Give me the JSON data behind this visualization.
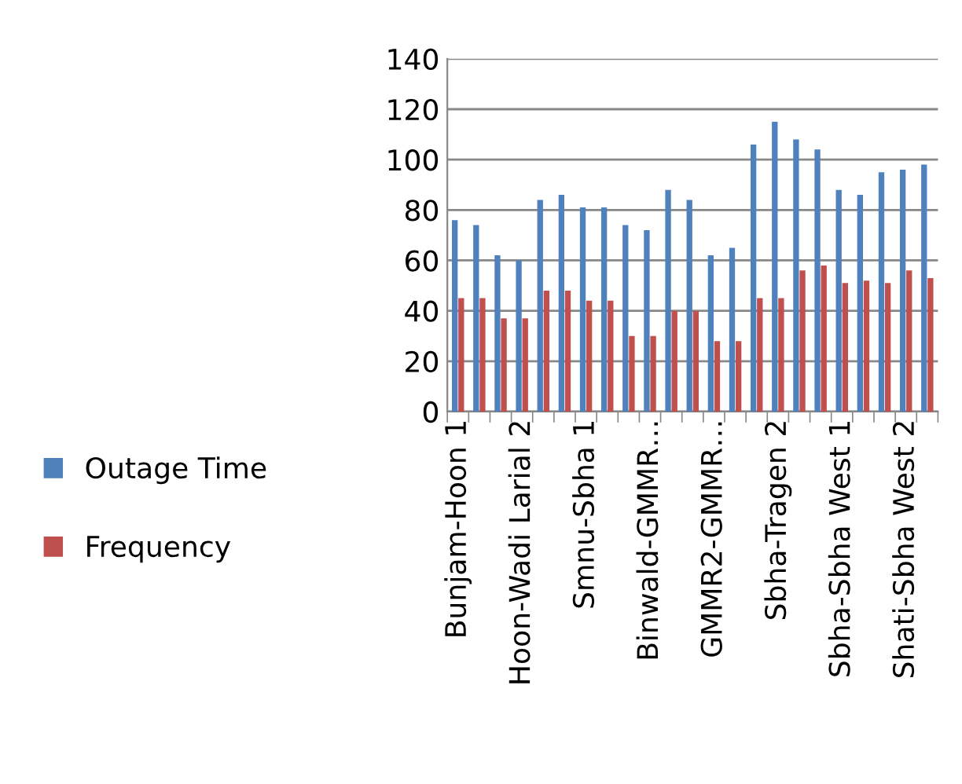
{
  "chart_data": {
    "type": "bar",
    "categories": [
      "Bunjam-Hoon 1",
      null,
      null,
      "Hoon-Wadi Larial 2",
      null,
      null,
      "Smnu-Sbha 1",
      null,
      null,
      "Binwald-GMMR…",
      null,
      null,
      "GMMR2-GMMR…",
      null,
      null,
      "Sbha-Tragen 2",
      null,
      null,
      "Sbha-Sbha West 1",
      null,
      null,
      "Shati-Sbha West 2",
      null
    ],
    "series": [
      {
        "name": "Outage Time",
        "color": "#4f81bd",
        "values": [
          76,
          74,
          62,
          60,
          84,
          86,
          81,
          81,
          74,
          72,
          88,
          84,
          62,
          65,
          106,
          115,
          108,
          104,
          88,
          86,
          95,
          96,
          98
        ]
      },
      {
        "name": "Frequency",
        "color": "#c0504d",
        "values": [
          45,
          45,
          37,
          37,
          48,
          48,
          44,
          44,
          30,
          30,
          40,
          40,
          28,
          28,
          45,
          45,
          56,
          58,
          51,
          52,
          51,
          56,
          53
        ]
      }
    ],
    "ylim": [
      0,
      140
    ],
    "yticks": [
      0,
      20,
      40,
      60,
      80,
      100,
      120,
      140
    ],
    "grid": "y",
    "legend": "left"
  }
}
